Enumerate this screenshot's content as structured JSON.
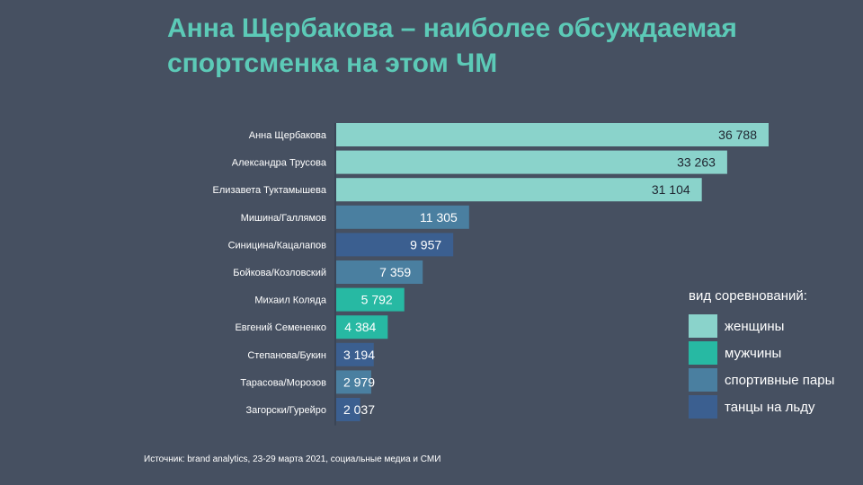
{
  "title_line1": "Анна Щербакова – наиболее обсуждаемая",
  "title_line2": "спортсменка на этом ЧМ",
  "source": "Источник: brand analytics, 23-29 марта 2021, социальные медиа и СМИ",
  "legend": {
    "title": "вид соревнований:",
    "items": [
      {
        "key": "women",
        "label": "женщины",
        "color": "#8ad3cb"
      },
      {
        "key": "men",
        "label": "мужчины",
        "color": "#27b9a3"
      },
      {
        "key": "pairs",
        "label": "спортивные пары",
        "color": "#4a7fa0"
      },
      {
        "key": "dance",
        "label": "танцы на льду",
        "color": "#3b5f90"
      }
    ]
  },
  "chart_data": {
    "type": "bar",
    "orientation": "horizontal",
    "categories": [
      "Анна Щербакова",
      "Александра Трусова",
      "Елизавета Туктамышева",
      "Мишина/Галлямов",
      "Синицина/Кацалапов",
      "Бойкова/Козловский",
      "Михаил Коляда",
      "Евгений Семененко",
      "Степанова/Букин",
      "Тарасова/Морозов",
      "Загорски/Гурейро"
    ],
    "values": [
      36788,
      33263,
      31104,
      11305,
      9957,
      7359,
      5792,
      4384,
      3194,
      2979,
      2037
    ],
    "value_labels": [
      "36 788",
      "33 263",
      "31 104",
      "11 305",
      "9 957",
      "7 359",
      "5 792",
      "4 384",
      "3 194",
      "2 979",
      "2 037"
    ],
    "groups": [
      "women",
      "women",
      "women",
      "pairs",
      "dance",
      "pairs",
      "men",
      "men",
      "dance",
      "pairs",
      "dance"
    ],
    "xlim": [
      0,
      40000
    ],
    "grid": false,
    "legend_position": "right"
  }
}
